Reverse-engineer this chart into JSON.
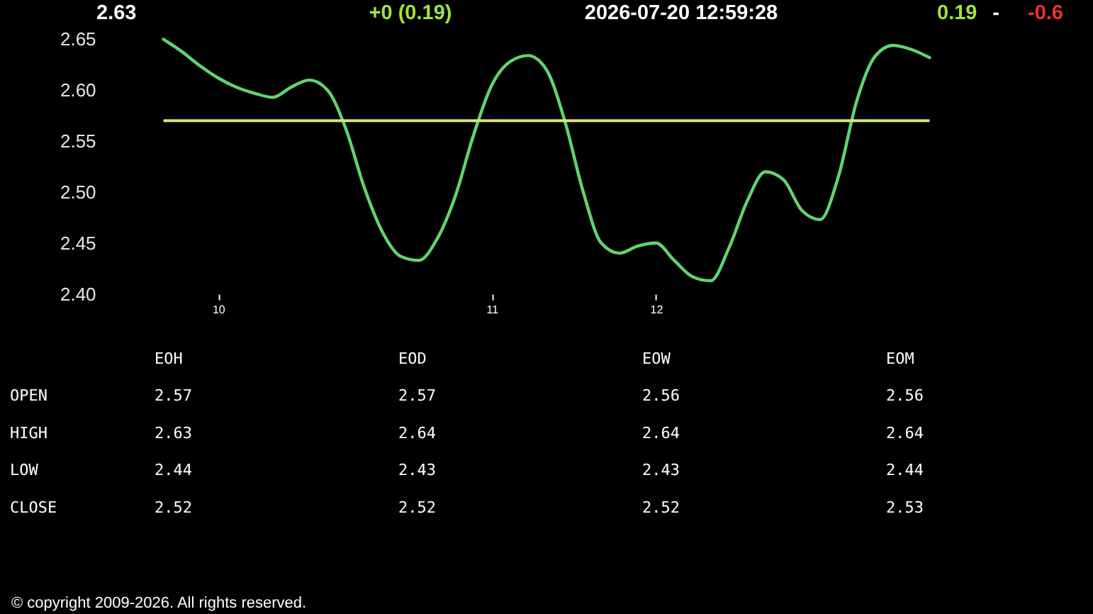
{
  "chart_data": [
    {
      "type": "line",
      "categories": [
        null,
        null,
        null,
        "10",
        null,
        null,
        null,
        null,
        null,
        null,
        null,
        null,
        null,
        null,
        null,
        null,
        null,
        null,
        "11",
        null,
        null,
        null,
        null,
        null,
        null,
        null,
        null,
        "12",
        null,
        null,
        null,
        null,
        null,
        null,
        null,
        null,
        null,
        null,
        null,
        null,
        null,
        null,
        null
      ],
      "values": [
        2.65,
        2.638,
        2.624,
        2.612,
        2.603,
        2.597,
        2.593,
        2.603,
        2.61,
        2.6,
        2.562,
        2.505,
        2.461,
        2.437,
        2.433,
        2.454,
        2.496,
        2.556,
        2.605,
        2.628,
        2.634,
        2.62,
        2.57,
        2.501,
        2.45,
        2.44,
        2.447,
        2.45,
        2.433,
        2.417,
        2.413,
        2.445,
        2.491,
        2.52,
        2.512,
        2.482,
        2.473,
        2.515,
        2.589,
        2.633,
        2.644,
        2.64,
        2.632
      ],
      "color": "#62d46e",
      "ylim": [
        2.4,
        2.65
      ],
      "yticks": [
        {
          "value": 2.4,
          "label": "2.40"
        },
        2.45,
        {
          "value": 2.5,
          "label": "2.50"
        },
        2.55,
        {
          "value": 2.6,
          "label": "2.60"
        },
        2.65
      ],
      "ref_lines": [
        {
          "axis": "y",
          "value": 2.57,
          "color": "#d8e47a"
        }
      ],
      "annotations": [
        "2.63",
        "+0 (0.19)",
        "2026-07-20 12:59:28",
        "0.19",
        "-",
        "-0.6",
        "© copyright 2009-2026. All rights reserved."
      ]
    },
    {
      "type": "other",
      "categories": [
        "EOH",
        "EOD",
        "EOW",
        "EOM"
      ],
      "y_categories": [
        "OPEN",
        "HIGH",
        "LOW",
        "CLOSE"
      ],
      "annotations": [
        "2.57",
        "2.57",
        "2.56",
        "2.56",
        "2.63",
        "2.64",
        "2.64",
        "2.64",
        "2.44",
        "2.43",
        "2.43",
        "2.44",
        "2.52",
        "2.52",
        "2.52",
        "2.53"
      ]
    }
  ]
}
